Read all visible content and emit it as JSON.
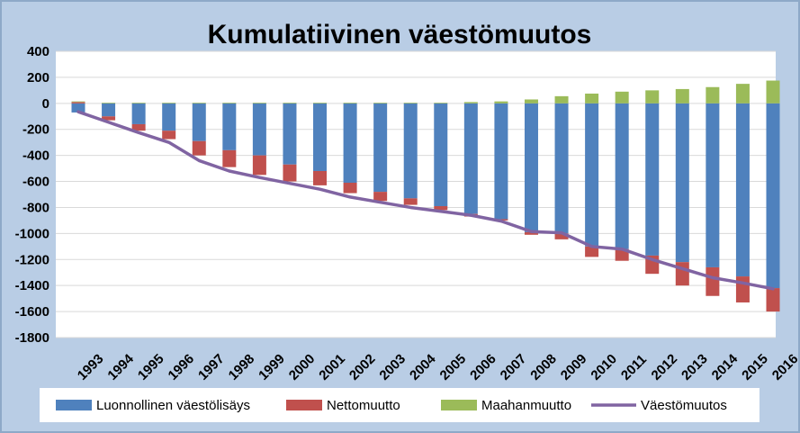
{
  "chart_data": {
    "type": "bar",
    "stacked": true,
    "title": "Kumulatiivinen väestömuutos",
    "xlabel": "",
    "ylabel": "",
    "ylim": [
      -1800,
      400
    ],
    "yticks": [
      400,
      200,
      0,
      -200,
      -400,
      -600,
      -800,
      -1000,
      -1200,
      -1400,
      -1600,
      -1800
    ],
    "grid": true,
    "legend_position": "bottom",
    "categories": [
      "1993",
      "1994",
      "1995",
      "1996",
      "1997",
      "1998",
      "1999",
      "2000",
      "2001",
      "2002",
      "2003",
      "2004",
      "2005",
      "2006",
      "2007",
      "2008",
      "2009",
      "2010",
      "2011",
      "2012",
      "2013",
      "2014",
      "2015",
      "2016"
    ],
    "series": [
      {
        "name": "Luonnollinen väestölisäys",
        "type": "bar",
        "color": "#4f81bd",
        "values": [
          -70,
          -100,
          -160,
          -210,
          -290,
          -360,
          -400,
          -470,
          -520,
          -610,
          -680,
          -730,
          -790,
          -850,
          -890,
          -990,
          -1000,
          -1100,
          -1120,
          -1170,
          -1220,
          -1260,
          -1330,
          -1420
        ]
      },
      {
        "name": "Nettomuutto",
        "type": "bar",
        "color": "#c0504d",
        "values": [
          10,
          -30,
          -50,
          -65,
          -110,
          -130,
          -150,
          -130,
          -110,
          -80,
          -70,
          -50,
          -30,
          -20,
          -10,
          -20,
          -45,
          -80,
          -90,
          -140,
          -180,
          -220,
          -200,
          -180
        ]
      },
      {
        "name": "Maahanmuutto",
        "type": "bar",
        "color": "#9bbb59",
        "values": [
          5,
          5,
          5,
          5,
          5,
          5,
          5,
          5,
          5,
          5,
          5,
          5,
          5,
          10,
          15,
          30,
          55,
          75,
          90,
          100,
          110,
          125,
          150,
          175
        ]
      },
      {
        "name": "Väestömuutos",
        "type": "line",
        "color": "#8064a2",
        "values": [
          -65,
          -145,
          -225,
          -300,
          -440,
          -520,
          -570,
          -615,
          -660,
          -720,
          -760,
          -800,
          -830,
          -860,
          -905,
          -985,
          -995,
          -1100,
          -1120,
          -1200,
          -1270,
          -1340,
          -1380,
          -1425
        ]
      }
    ]
  }
}
